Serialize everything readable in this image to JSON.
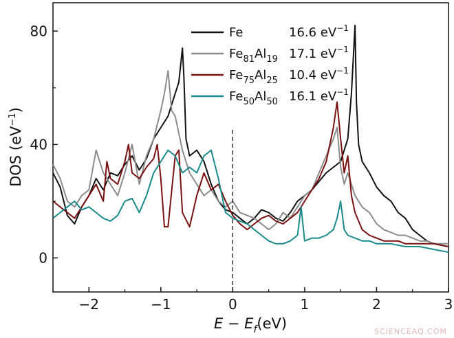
{
  "chart_data": {
    "type": "line",
    "xlabel": {
      "main": "E − E",
      "sub": "f",
      "unit": "(eV)"
    },
    "ylabel": {
      "main": "DOS (eV",
      "sup": "−1",
      "tail": ")"
    },
    "xlim": [
      -2.5,
      3
    ],
    "ylim": [
      -12,
      90
    ],
    "xticks": [
      -2,
      -1,
      0,
      1,
      2,
      3
    ],
    "xtick_labels": [
      "−2",
      "−1",
      "0",
      "1",
      "2",
      "3"
    ],
    "yticks": [
      0,
      40,
      80
    ],
    "ytick_labels": [
      "0",
      "40",
      "80"
    ],
    "fermi_level_x": 0,
    "fermi_line_top": 46,
    "legend_position": "top-right",
    "series": [
      {
        "key": "fe",
        "name": "Fe",
        "name_base": "Fe",
        "sub1": "",
        "mid": "",
        "sub2": "",
        "value_label": "16.6 eV",
        "color": "#111111",
        "x": [
          -2.5,
          -2.4,
          -2.3,
          -2.2,
          -2.1,
          -2.0,
          -1.9,
          -1.8,
          -1.7,
          -1.6,
          -1.5,
          -1.4,
          -1.3,
          -1.2,
          -1.1,
          -1.0,
          -0.9,
          -0.8,
          -0.75,
          -0.7,
          -0.68,
          -0.65,
          -0.6,
          -0.5,
          -0.4,
          -0.3,
          -0.2,
          -0.1,
          0.0,
          0.1,
          0.2,
          0.3,
          0.4,
          0.5,
          0.6,
          0.7,
          0.8,
          0.9,
          1.0,
          1.1,
          1.2,
          1.3,
          1.4,
          1.5,
          1.6,
          1.65,
          1.7,
          1.72,
          1.75,
          1.8,
          1.9,
          2.0,
          2.1,
          2.2,
          2.3,
          2.4,
          2.5,
          2.6,
          2.7,
          2.8,
          3.0
        ],
        "y": [
          30,
          25,
          15,
          12,
          18,
          22,
          28,
          24,
          30,
          29,
          33,
          36,
          31,
          35,
          42,
          46,
          50,
          58,
          62,
          74,
          64,
          42,
          36,
          38,
          34,
          26,
          20,
          17,
          16,
          14,
          12,
          14,
          17,
          16,
          14,
          13,
          16,
          20,
          22,
          24,
          27,
          30,
          32,
          34,
          42,
          58,
          82,
          55,
          40,
          34,
          30,
          25,
          22,
          20,
          16,
          14,
          10,
          8,
          6,
          5,
          4
        ]
      },
      {
        "key": "fe81",
        "name": "Fe81Al19",
        "name_base": "Fe",
        "sub1": "81",
        "mid": "Al",
        "sub2": "19",
        "value_label": "17.1 eV",
        "color": "#8c8c8c",
        "x": [
          -2.5,
          -2.4,
          -2.3,
          -2.2,
          -2.1,
          -2.0,
          -1.9,
          -1.8,
          -1.7,
          -1.6,
          -1.5,
          -1.4,
          -1.3,
          -1.2,
          -1.1,
          -1.0,
          -0.95,
          -0.9,
          -0.85,
          -0.8,
          -0.7,
          -0.6,
          -0.5,
          -0.4,
          -0.3,
          -0.2,
          -0.1,
          0.0,
          0.1,
          0.2,
          0.3,
          0.4,
          0.5,
          0.6,
          0.7,
          0.8,
          0.9,
          1.0,
          1.1,
          1.2,
          1.3,
          1.4,
          1.45,
          1.5,
          1.55,
          1.6,
          1.7,
          1.8,
          1.9,
          2.0,
          2.1,
          2.2,
          2.3,
          2.4,
          2.5,
          2.6,
          2.7,
          2.8,
          3.0
        ],
        "y": [
          33,
          28,
          20,
          18,
          22,
          24,
          38,
          30,
          26,
          22,
          30,
          40,
          26,
          36,
          42,
          52,
          58,
          66,
          52,
          50,
          38,
          30,
          26,
          22,
          24,
          20,
          18,
          20,
          16,
          15,
          14,
          12,
          10,
          12,
          16,
          14,
          18,
          22,
          24,
          30,
          36,
          42,
          46,
          32,
          26,
          30,
          22,
          18,
          16,
          12,
          10,
          9,
          8,
          8,
          7,
          6,
          6,
          5,
          5
        ]
      },
      {
        "key": "fe75",
        "name": "Fe75Al25",
        "name_base": "Fe",
        "sub1": "75",
        "mid": "Al",
        "sub2": "25",
        "value_label": "10.4 eV",
        "color": "#7b1010",
        "x": [
          -2.5,
          -2.4,
          -2.3,
          -2.2,
          -2.1,
          -2.0,
          -1.9,
          -1.8,
          -1.75,
          -1.7,
          -1.6,
          -1.5,
          -1.45,
          -1.4,
          -1.3,
          -1.2,
          -1.1,
          -1.05,
          -1.0,
          -0.95,
          -0.9,
          -0.8,
          -0.75,
          -0.7,
          -0.6,
          -0.5,
          -0.4,
          -0.3,
          -0.2,
          -0.1,
          0.0,
          0.1,
          0.2,
          0.3,
          0.4,
          0.5,
          0.6,
          0.7,
          0.8,
          0.9,
          1.0,
          1.1,
          1.2,
          1.3,
          1.4,
          1.45,
          1.5,
          1.55,
          1.6,
          1.65,
          1.7,
          1.8,
          1.9,
          2.0,
          2.1,
          2.2,
          2.3,
          2.4,
          2.5,
          2.6,
          2.8,
          3.0
        ],
        "y": [
          20,
          18,
          16,
          14,
          18,
          22,
          26,
          20,
          34,
          28,
          26,
          34,
          40,
          30,
          28,
          32,
          35,
          40,
          28,
          11,
          11,
          36,
          38,
          16,
          11,
          22,
          30,
          24,
          26,
          20,
          15,
          12,
          10,
          12,
          14,
          15,
          13,
          12,
          14,
          16,
          20,
          24,
          28,
          34,
          46,
          55,
          42,
          30,
          36,
          22,
          16,
          10,
          8,
          7,
          6,
          6,
          6,
          5,
          5,
          5,
          5,
          4
        ]
      },
      {
        "key": "fe50",
        "name": "Fe50Al50",
        "name_base": "Fe",
        "sub1": "50",
        "mid": "Al",
        "sub2": "50",
        "value_label": "16.1 eV",
        "color": "#1a8a8a",
        "x": [
          -2.5,
          -2.4,
          -2.3,
          -2.2,
          -2.1,
          -2.0,
          -1.9,
          -1.8,
          -1.7,
          -1.6,
          -1.5,
          -1.4,
          -1.3,
          -1.2,
          -1.1,
          -1.0,
          -0.9,
          -0.8,
          -0.7,
          -0.6,
          -0.5,
          -0.4,
          -0.3,
          -0.2,
          -0.1,
          0.0,
          0.1,
          0.2,
          0.3,
          0.4,
          0.5,
          0.6,
          0.7,
          0.8,
          0.9,
          0.95,
          1.0,
          1.1,
          1.2,
          1.3,
          1.4,
          1.45,
          1.5,
          1.55,
          1.6,
          1.7,
          1.8,
          1.9,
          2.0,
          2.1,
          2.2,
          2.4,
          2.6,
          2.8,
          3.0
        ],
        "y": [
          14,
          16,
          18,
          20,
          17,
          18,
          16,
          14,
          13,
          15,
          20,
          21,
          16,
          22,
          30,
          34,
          38,
          36,
          30,
          32,
          30,
          36,
          38,
          28,
          16,
          14,
          13,
          12,
          10,
          8,
          6,
          5,
          5,
          6,
          8,
          18,
          6,
          7,
          7,
          8,
          10,
          14,
          20,
          10,
          8,
          7,
          6,
          6,
          5,
          5,
          5,
          4,
          4,
          3,
          2
        ]
      }
    ]
  },
  "legend_value_sup": "−1",
  "watermark": "SCIENCEAQ.COM"
}
